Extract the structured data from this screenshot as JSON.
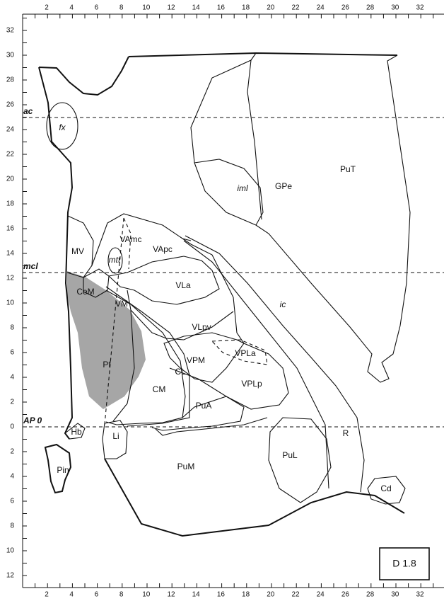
{
  "axes": {
    "x_labels": [
      "2",
      "4",
      "6",
      "8",
      "10",
      "12",
      "14",
      "16",
      "18",
      "20",
      "22",
      "24",
      "26",
      "28",
      "30",
      "32"
    ],
    "y_labels": [
      "32",
      "30",
      "28",
      "26",
      "24",
      "22",
      "20",
      "18",
      "16",
      "14",
      "12",
      "10",
      "8",
      "6",
      "4",
      "2",
      "0",
      "2",
      "4",
      "6",
      "8",
      "10",
      "12"
    ]
  },
  "reference_lines": [
    {
      "label": "ac"
    },
    {
      "label": "mcl"
    },
    {
      "label": "AP 0"
    }
  ],
  "regions": [
    {
      "label": "fx"
    },
    {
      "label": "iml"
    },
    {
      "label": "GPe"
    },
    {
      "label": "PuT"
    },
    {
      "label": "MV"
    },
    {
      "label": "VAmc"
    },
    {
      "label": "mtt"
    },
    {
      "label": "VApc"
    },
    {
      "label": "VLa"
    },
    {
      "label": "ic"
    },
    {
      "label": "CeM"
    },
    {
      "label": "VM"
    },
    {
      "label": "VLpv"
    },
    {
      "label": "VPM"
    },
    {
      "label": "VPLa"
    },
    {
      "label": "Pf"
    },
    {
      "label": "CL"
    },
    {
      "label": "CM"
    },
    {
      "label": "VPLp"
    },
    {
      "label": "PuA"
    },
    {
      "label": "R"
    },
    {
      "label": "Hb"
    },
    {
      "label": "Li"
    },
    {
      "label": "PuL"
    },
    {
      "label": "Pin"
    },
    {
      "label": "PuM"
    },
    {
      "label": "Cd"
    }
  ],
  "section_label": "D 1.8"
}
